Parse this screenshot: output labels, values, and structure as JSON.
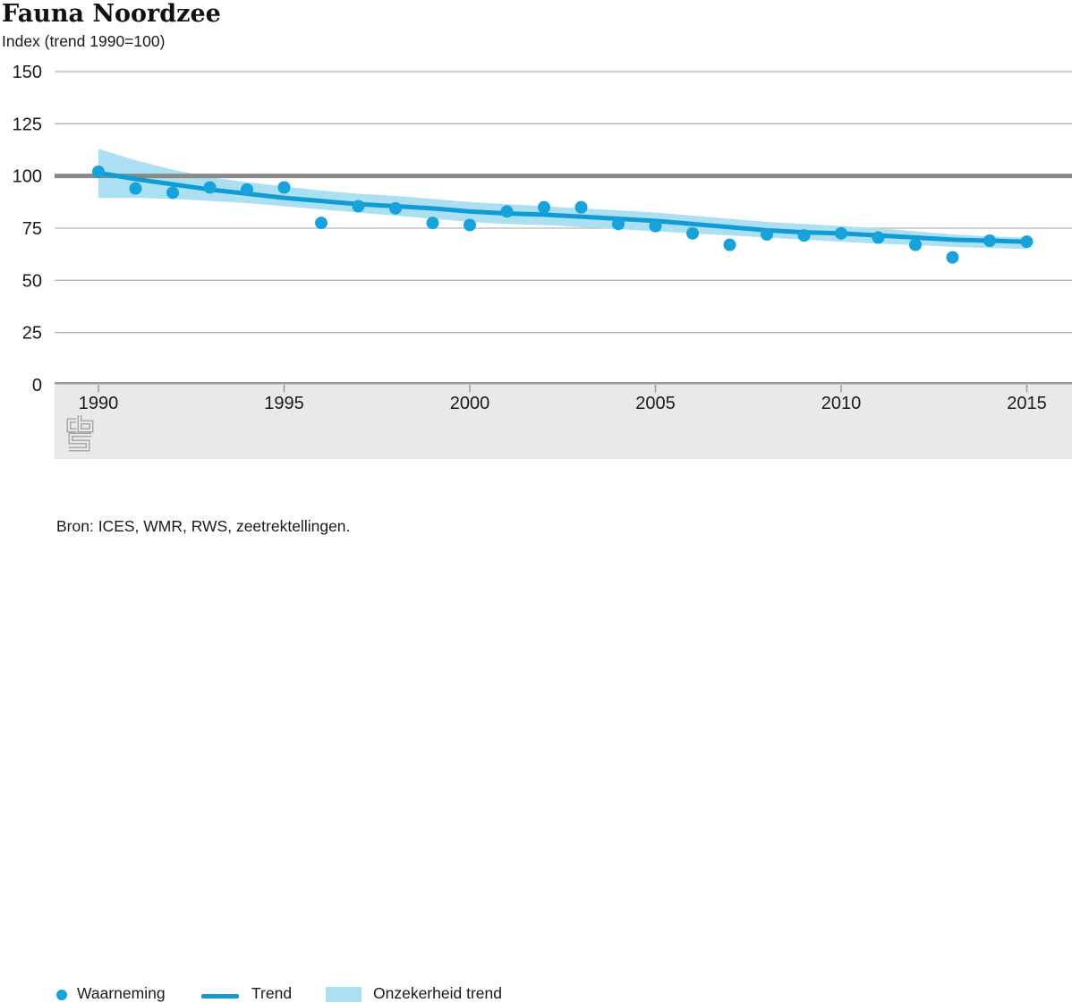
{
  "header": {
    "title": "Fauna Noordzee",
    "subtitle": "Index (trend 1990=100)"
  },
  "chart_data": {
    "type": "line",
    "title": "Fauna Noordzee",
    "ylabel": "Index (trend 1990=100)",
    "xlabel": "",
    "x": [
      1990,
      1991,
      1992,
      1993,
      1994,
      1995,
      1996,
      1997,
      1998,
      1999,
      2000,
      2001,
      2002,
      2003,
      2004,
      2005,
      2006,
      2007,
      2008,
      2009,
      2010,
      2011,
      2012,
      2013,
      2014,
      2015
    ],
    "series": [
      {
        "name": "Waarneming",
        "type": "scatter",
        "values": [
          102,
          94,
          92,
          94.5,
          93.5,
          94.5,
          77.5,
          85.5,
          84.5,
          77.5,
          76.5,
          83,
          85,
          85,
          77,
          76,
          72.5,
          67,
          72,
          71.5,
          72.5,
          70.5,
          67,
          61,
          69,
          68.5
        ]
      },
      {
        "name": "Trend",
        "type": "line",
        "values": [
          101.5,
          98.5,
          96,
          93.5,
          91.5,
          89.5,
          88,
          86.5,
          85.5,
          84.5,
          83,
          82,
          81.5,
          80.5,
          79.5,
          78.5,
          77,
          75.5,
          74,
          73,
          72.5,
          71.5,
          70.5,
          69.5,
          69,
          68.5
        ]
      },
      {
        "name": "Onzekerheid trend",
        "type": "band",
        "upper": [
          113,
          107.5,
          103,
          99.5,
          97,
          95,
          93,
          91.5,
          90.5,
          89,
          87.5,
          86.5,
          85.5,
          84.5,
          83.5,
          82.5,
          81,
          79.5,
          78,
          77,
          76,
          75,
          73.5,
          72,
          71,
          70.5
        ],
        "lower": [
          89.5,
          89.5,
          89,
          88,
          87,
          85.5,
          84,
          82.5,
          81,
          79.5,
          78,
          77,
          76.5,
          75.5,
          74.5,
          73.5,
          72.5,
          71.5,
          70.5,
          69.5,
          68.5,
          67.5,
          67,
          66,
          65.5,
          65
        ]
      }
    ],
    "xticks": [
      1990,
      1995,
      2000,
      2005,
      2010,
      2015
    ],
    "yticks": [
      0,
      25,
      50,
      75,
      100,
      125,
      150
    ],
    "ylim": [
      0,
      150
    ],
    "xlim": [
      1989,
      2016.2
    ],
    "reference_line": 100,
    "grid": true,
    "legend_position": "bottom"
  },
  "legend": {
    "items": [
      {
        "label": "Waarneming",
        "swatch": "dot"
      },
      {
        "label": "Trend",
        "swatch": "line"
      },
      {
        "label": "Onzekerheid trend",
        "swatch": "band"
      }
    ]
  },
  "source": {
    "text": "Bron: ICES, WMR, RWS, zeetrektellingen."
  },
  "branding": {
    "logo": "cbs-logo"
  },
  "colors": {
    "observation": "#16a2db",
    "trend": "#0f9cd6",
    "band": "#abdff2",
    "reference": "#898989",
    "grid": "#b3b3b3",
    "axis_band": "#e9e9e9",
    "axis_border": "#9a9a9a",
    "text": "#1a1a1a"
  }
}
